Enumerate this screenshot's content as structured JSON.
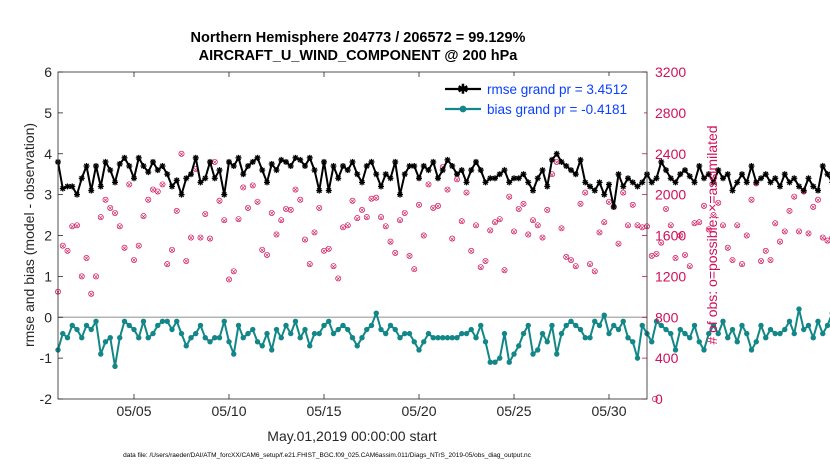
{
  "chart_data": {
    "type": "line",
    "title": "Northern Hemisphere 204773 / 206572 = 99.129%",
    "subtitle": "AIRCRAFT_U_WIND_COMPONENT @ 200 hPa",
    "xlabel": "May.01,2019 00:00:00 start",
    "ylabel": "rmse and bias (model - observation)",
    "y2label": "# of obs: o=possible; ×=assimilated",
    "footnote": "data file: /Users/raeder/DAI/ATM_forcXX/CAM6_setup/f.e21.FHIST_BGC.f09_025.CAM6assim.011/Diags_NTrS_2019-05/obs_diag_output.nc",
    "xlim": [
      1,
      32
    ],
    "ylim": [
      -2,
      6
    ],
    "y2lim": [
      0,
      3200
    ],
    "x_ticks": [
      5,
      10,
      15,
      20,
      25,
      30
    ],
    "x_tick_labels": [
      "05/05",
      "05/10",
      "05/15",
      "05/20",
      "05/25",
      "05/30"
    ],
    "y_ticks": [
      -2,
      -1,
      0,
      1,
      2,
      3,
      4,
      5,
      6
    ],
    "y_tick_labels": [
      "-2",
      "-1",
      "0",
      "1",
      "2",
      "3",
      "4",
      "5",
      "6"
    ],
    "y2_ticks": [
      0,
      400,
      800,
      1200,
      1600,
      2000,
      2400,
      2800,
      3200
    ],
    "y2_tick_labels": [
      "0",
      "400",
      "800",
      "1200",
      "1600",
      "2000",
      "2400",
      "2800",
      "3200"
    ],
    "legend": {
      "position": "top-right",
      "entries": [
        "rmse grand pr = 3.4512",
        "bias grand pr = -0.4181"
      ]
    },
    "colors": {
      "rmse": "#000000",
      "bias": "#138787",
      "obs": "#d0105a",
      "legend_text": "#0a40ff",
      "zero_line": "#b4b4b4"
    },
    "time_start": 1,
    "time_step": 0.25,
    "series": [
      {
        "name": "rmse grand pr = 3.4512",
        "values": [
          3.8,
          3.15,
          3.2,
          3.2,
          3.0,
          3.4,
          3.7,
          3.1,
          3.7,
          3.2,
          3.8,
          3.6,
          3.3,
          3.75,
          3.9,
          3.7,
          3.4,
          3.9,
          3.7,
          3.55,
          3.8,
          3.6,
          3.7,
          3.5,
          3.2,
          3.35,
          3.0,
          3.4,
          3.5,
          3.9,
          3.3,
          3.4,
          3.8,
          3.4,
          3.6,
          3.0,
          3.8,
          3.7,
          3.9,
          3.5,
          3.7,
          3.8,
          3.9,
          3.6,
          3.3,
          3.75,
          3.6,
          3.85,
          3.8,
          3.7,
          3.9,
          3.85,
          3.7,
          3.9,
          3.6,
          3.1,
          3.8,
          3.1,
          3.7,
          3.4,
          3.7,
          3.6,
          3.8,
          3.5,
          3.3,
          3.7,
          3.8,
          3.5,
          3.2,
          3.5,
          3.4,
          3.8,
          3.0,
          3.5,
          3.7,
          3.7,
          3.4,
          3.7,
          3.6,
          3.8,
          3.4,
          3.6,
          3.85,
          3.7,
          3.5,
          3.6,
          3.3,
          3.6,
          3.8,
          3.6,
          3.3,
          3.4,
          3.4,
          3.5,
          3.6,
          3.3,
          3.4,
          3.4,
          3.5,
          3.3,
          3.1,
          3.4,
          3.6,
          3.2,
          3.85,
          4.0,
          3.8,
          3.7,
          3.6,
          3.5,
          3.85,
          3.3,
          3.2,
          3.1,
          3.3,
          3.0,
          3.25,
          2.7,
          3.5,
          3.2,
          3.4,
          3.3,
          3.2,
          3.3,
          3.5,
          3.3,
          3.4,
          3.8,
          3.6,
          3.4,
          3.3,
          3.5,
          3.6,
          3.45,
          3.3,
          3.7,
          3.4,
          3.5,
          3.3,
          3.6,
          3.4,
          3.5,
          3.1,
          3.3,
          3.5,
          3.3,
          3.7,
          3.3,
          3.4,
          3.5,
          3.3,
          3.4,
          3.2,
          3.5,
          3.3,
          3.4,
          3.2,
          3.1,
          3.4,
          3.2,
          3.1,
          3.7,
          3.5,
          3.3,
          3.8,
          3.6,
          3.5,
          3.4,
          3.0,
          3.55,
          3.1,
          3.5,
          3.3,
          3.4,
          3.1,
          3.3,
          3.2,
          3.4,
          3.1,
          3.2,
          3.0,
          3.3,
          3.0,
          2.95,
          2.7,
          3.3,
          3.85,
          3.4,
          3.2,
          3.1,
          3.0,
          2.95,
          2.85
        ]
      },
      {
        "name": "bias grand pr = -0.4181",
        "values": [
          -0.8,
          -0.4,
          -0.5,
          -0.2,
          -0.3,
          -0.5,
          -0.2,
          -0.3,
          -0.1,
          -0.9,
          -0.6,
          -0.5,
          -1.2,
          -0.5,
          -0.1,
          -0.2,
          -0.3,
          -0.5,
          -0.1,
          -0.5,
          -0.4,
          -0.2,
          -0.1,
          -0.1,
          -0.3,
          -0.1,
          -0.4,
          -0.7,
          -0.5,
          -0.4,
          -0.2,
          -0.5,
          -0.6,
          -0.5,
          -0.5,
          -0.1,
          -0.6,
          -0.9,
          -0.2,
          -0.5,
          -0.4,
          -0.3,
          -0.6,
          -0.7,
          -0.4,
          -0.8,
          -0.3,
          -0.5,
          -0.2,
          -0.4,
          -0.1,
          -0.5,
          -0.3,
          -0.7,
          -0.4,
          -0.4,
          -0.2,
          -0.1,
          -0.4,
          -0.3,
          -0.2,
          -0.3,
          -0.5,
          -0.7,
          -0.5,
          -0.3,
          -0.2,
          0.1,
          -0.3,
          -0.4,
          -0.2,
          -0.3,
          -0.5,
          -0.4,
          -0.4,
          -0.6,
          -0.8,
          -0.6,
          -0.4,
          -0.5,
          -0.5,
          -0.5,
          -0.5,
          -0.5,
          -0.5,
          -0.4,
          -0.4,
          -0.3,
          -0.5,
          -0.2,
          -0.6,
          -1.1,
          -1.1,
          -1.0,
          -0.4,
          -1.1,
          -0.9,
          -0.7,
          -0.4,
          -0.2,
          -0.9,
          -0.8,
          -0.4,
          -0.6,
          -0.2,
          -0.9,
          -0.4,
          -0.2,
          -0.1,
          -0.2,
          -0.3,
          -0.5,
          -0.5,
          -0.1,
          -0.2,
          0.05,
          -0.4,
          -0.2,
          -0.3,
          -0.1,
          -0.5,
          -0.6,
          -1.0,
          -0.2,
          -0.4,
          -0.6,
          -0.1,
          -0.2,
          -0.3,
          -0.4,
          -0.8,
          -0.3,
          -0.4,
          -0.5,
          -0.2,
          -0.6,
          -0.8,
          -0.4,
          -0.2,
          -0.4,
          -0.1,
          -0.5,
          -0.3,
          -0.6,
          -0.2,
          -0.4,
          -0.8,
          -0.6,
          -0.2,
          -0.5,
          -0.3,
          -0.4,
          -0.4,
          -0.3,
          -0.1,
          -0.4,
          0.2,
          -0.3,
          -0.2,
          -0.5,
          -0.1,
          -0.4,
          -0.2,
          0.1,
          -0.2,
          -0.9,
          -0.4,
          -0.2,
          -0.5,
          -0.3,
          -0.4,
          -0.6,
          -0.5,
          -0.2,
          0.1,
          -0.3,
          -0.2,
          -0.1,
          -0.3,
          -0.2,
          0.1,
          0.2,
          -0.1,
          -0.5,
          -0.9,
          -0.5,
          0.1,
          0.05
        ]
      }
    ],
    "obs_counts": [
      1050,
      1500,
      1450,
      1690,
      1700,
      1200,
      1380,
      1030,
      1200,
      1780,
      1950,
      1870,
      1820,
      1690,
      1480,
      2100,
      1360,
      1500,
      1790,
      1950,
      2050,
      2030,
      2100,
      1320,
      1460,
      1840,
      2400,
      1350,
      1580,
      2250,
      1580,
      1810,
      1570,
      2320,
      1940,
      1750,
      1170,
      1250,
      1760,
      2070,
      1870,
      2090,
      1930,
      1460,
      1410,
      1820,
      1610,
      1750,
      1860,
      1850,
      2050,
      1950,
      1560,
      1320,
      1630,
      1870,
      1450,
      1470,
      1300,
      1180,
      1680,
      1700,
      1940,
      1770,
      1850,
      1780,
      1960,
      1970,
      1780,
      1690,
      1540,
      1430,
      1750,
      1820,
      1400,
      1270,
      1900,
      1600,
      2100,
      1870,
      1890,
      2270,
      2050,
      1570,
      2150,
      1740,
      2020,
      1450,
      1700,
      1290,
      1350,
      1650,
      1730,
      1760,
      1260,
      1980,
      1640,
      1860,
      1910,
      1610,
      1750,
      1700,
      1580,
      1850,
      2200,
      2320,
      1670,
      1390,
      1360,
      1300,
      1910,
      2020,
      1320,
      1250,
      1630,
      1730,
      1930,
      1880,
      1520,
      2020,
      1700,
      1900,
      1700,
      1680,
      1690,
      1400,
      1420,
      1530,
      1860,
      1700,
      1380,
      1600,
      1410,
      1300,
      1720,
      1730,
      1890,
      1660,
      1800,
      1920,
      1700,
      1480,
      1360,
      1700,
      1320,
      1600,
      1950,
      2110,
      1350,
      1450,
      1360,
      1720,
      1540,
      1640,
      1840,
      1980,
      1640,
      2030,
      1620,
      1880,
      1950,
      1580,
      1550,
      1580,
      1560,
      1680,
      1400,
      1390,
      1750,
      1920,
      1620,
      1960,
      1700,
      1680,
      1480,
      1540,
      1450,
      1640,
      1890,
      1410,
      1820,
      1610,
      1900,
      1760,
      1900,
      1920,
      2370,
      1820,
      2160,
      1670,
      1920,
      1780,
      1790,
      1870
    ]
  }
}
